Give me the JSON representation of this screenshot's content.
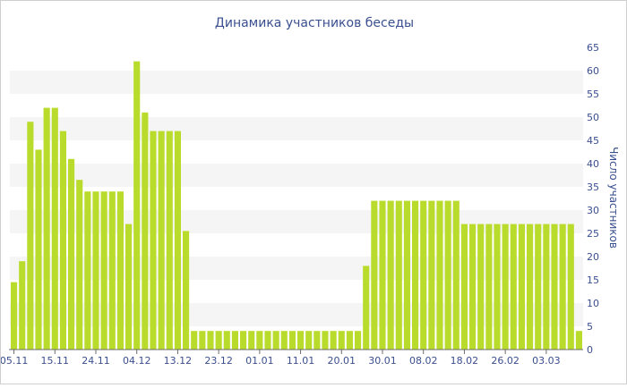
{
  "chart_data": {
    "type": "bar",
    "title": "Динамика участников беседы",
    "xlabel": "",
    "ylabel": "Число участников",
    "ylim": [
      0,
      65
    ],
    "y_ticks": [
      0,
      5,
      10,
      15,
      20,
      25,
      30,
      35,
      40,
      45,
      50,
      55,
      60,
      65
    ],
    "grid": "alternating horizontal bands",
    "colors": {
      "bar": "#b9db2b",
      "band": "#f5f5f5",
      "axis_text": "#3a4f8f",
      "title": "#3a4f8f"
    },
    "x_tick_labels": [
      {
        "label": "05.11",
        "index": 0
      },
      {
        "label": "15.11",
        "index": 5
      },
      {
        "label": "24.11",
        "index": 10
      },
      {
        "label": "04.12",
        "index": 15
      },
      {
        "label": "13.12",
        "index": 20
      },
      {
        "label": "23.12",
        "index": 25
      },
      {
        "label": "01.01",
        "index": 30
      },
      {
        "label": "11.01",
        "index": 35
      },
      {
        "label": "20.01",
        "index": 40
      },
      {
        "label": "30.01",
        "index": 45
      },
      {
        "label": "08.02",
        "index": 50
      },
      {
        "label": "18.02",
        "index": 55
      },
      {
        "label": "26.02",
        "index": 60
      },
      {
        "label": "03.03",
        "index": 65
      }
    ],
    "values": [
      14.5,
      19,
      49,
      43,
      52,
      52,
      47,
      41,
      36.5,
      34,
      34,
      34,
      34,
      34,
      27,
      62,
      51,
      47,
      47,
      47,
      47,
      25.5,
      4,
      4,
      4,
      4,
      4,
      4,
      4,
      4,
      4,
      4,
      4,
      4,
      4,
      4,
      4,
      4,
      4,
      4,
      4,
      4,
      4,
      18,
      32,
      32,
      32,
      32,
      32,
      32,
      32,
      32,
      32,
      32,
      32,
      27,
      27,
      27,
      27,
      27,
      27,
      27,
      27,
      27,
      27,
      27,
      27,
      27,
      27,
      4
    ]
  }
}
